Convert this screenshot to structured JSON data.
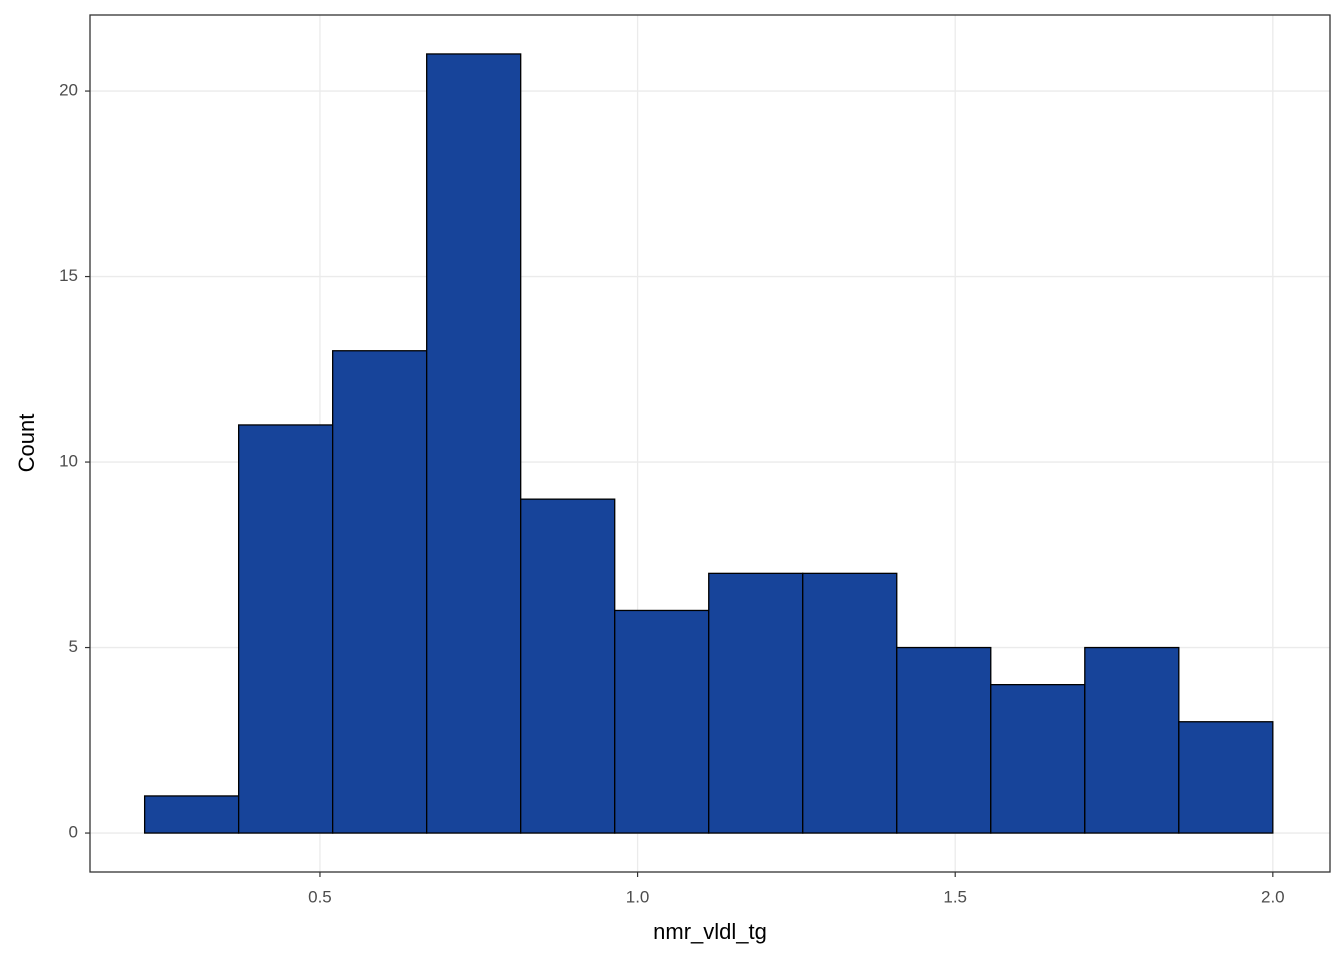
{
  "chart_data": {
    "type": "histogram",
    "x_label": "nmr_vldl_tg",
    "y_label": "Count",
    "bins": [
      0.224,
      0.372,
      0.52,
      0.668,
      0.816,
      0.964,
      1.112,
      1.26,
      1.408,
      1.556,
      1.704,
      1.852,
      2.0
    ],
    "values": [
      1,
      11,
      13,
      21,
      9,
      6,
      7,
      7,
      5,
      4,
      5,
      3
    ],
    "color": "#17449a",
    "edge_color": "#000000",
    "xlim": [
      0.138,
      2.09
    ],
    "ylim": [
      -1.05,
      22.05
    ],
    "xticks": [
      0.5,
      {
        "value": 1.0,
        "label": "1.0"
      },
      1.5,
      {
        "value": 2.0,
        "label": "2.0"
      }
    ],
    "yticks": [
      0,
      5,
      10,
      15,
      20
    ],
    "grid": true
  }
}
